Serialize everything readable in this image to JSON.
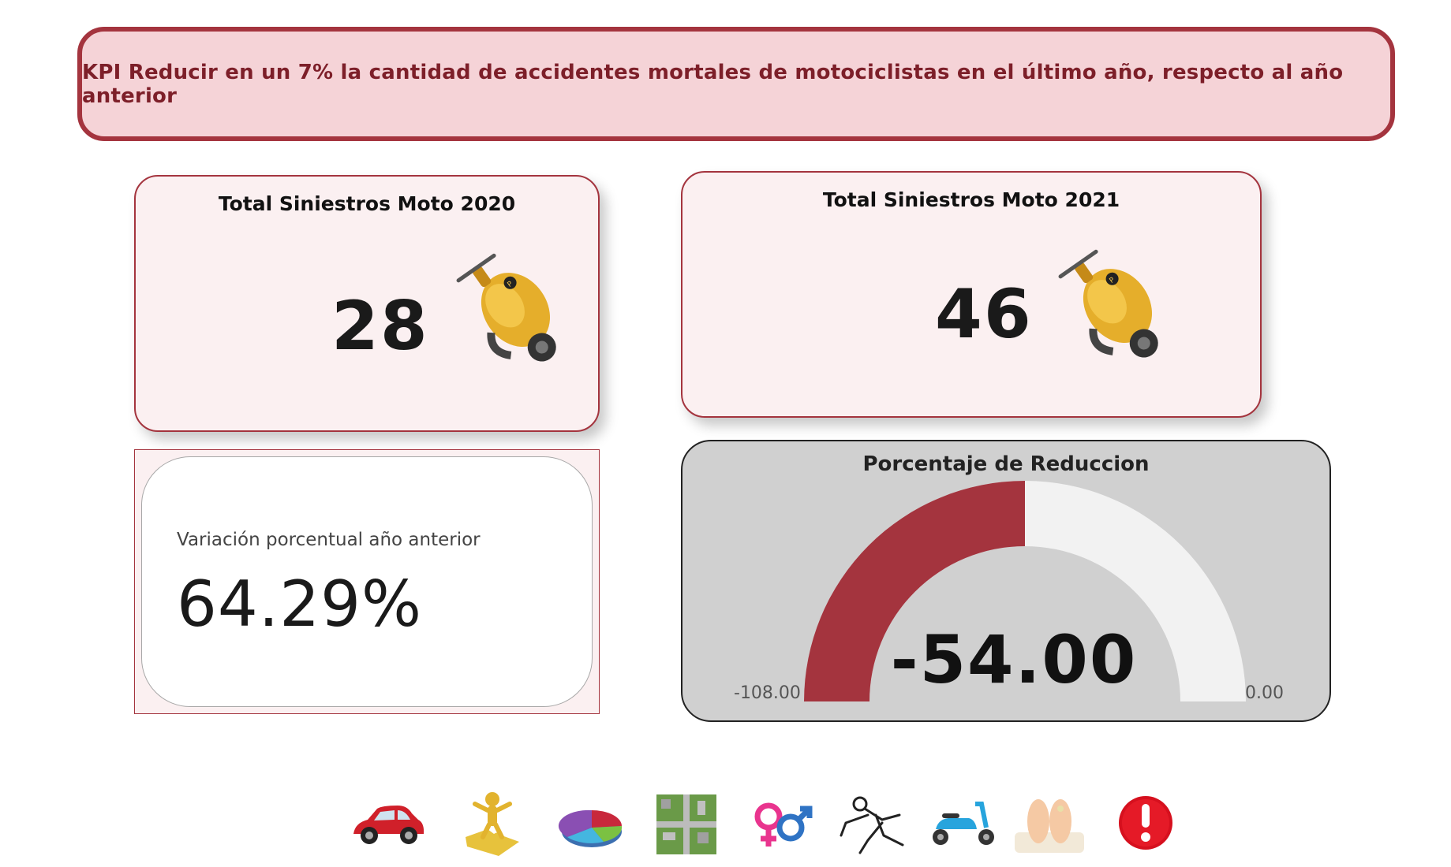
{
  "kpi_banner": {
    "text": "KPI Reducir en un 7% la cantidad de accidentes mortales de motociclistas en el último año, respecto al año anterior"
  },
  "cards": {
    "moto_2020": {
      "title": "Total Siniestros Moto 2020",
      "value": "28"
    },
    "moto_2021": {
      "title": "Total Siniestros Moto 2021",
      "value": "46"
    }
  },
  "variation": {
    "label": "Variación porcentual año anterior",
    "value": "64.29%"
  },
  "gauge": {
    "title": "Porcentaje de Reduccion",
    "value_label": "-54.00",
    "value": -54.0,
    "min": -108.0,
    "max": 0.0,
    "min_label": "-108.00",
    "max_label": "0.00",
    "fill_color": "#a4343e",
    "track_color": "#f2f2f2"
  },
  "nav_icons": [
    "car-icon",
    "puzzle-person-icon",
    "pie-chart-icon",
    "city-map-icon",
    "gender-icon",
    "body-outline-icon",
    "scooter-icon",
    "feet-icon",
    "alert-icon"
  ],
  "colors": {
    "accent": "#a4343e",
    "banner_bg": "#f5d3d7",
    "card_bg": "#fbf0f1",
    "gauge_bg": "#d0d0d0"
  }
}
